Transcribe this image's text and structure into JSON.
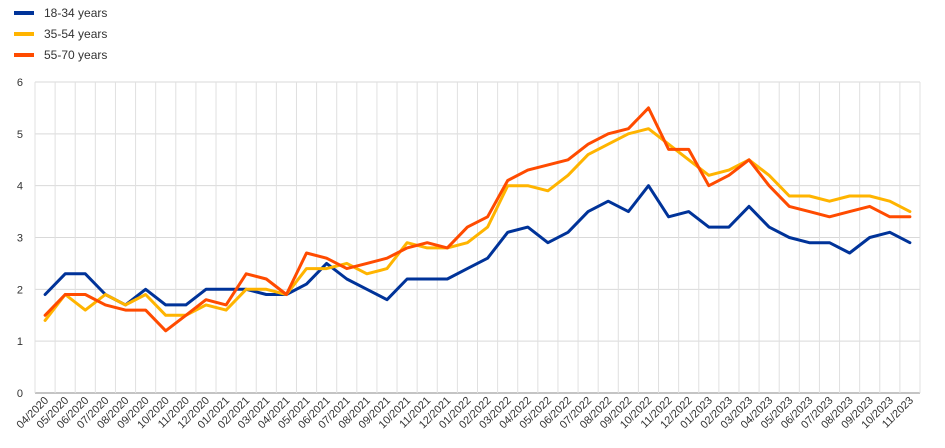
{
  "chart_data": {
    "type": "line",
    "title": "",
    "xlabel": "",
    "ylabel": "",
    "ylim": [
      0,
      6
    ],
    "yticks": [
      0,
      1,
      2,
      3,
      4,
      5,
      6
    ],
    "grid": true,
    "legend_position": "top-left",
    "categories": [
      "04/2020",
      "05/2020",
      "06/2020",
      "07/2020",
      "08/2020",
      "09/2020",
      "10/2020",
      "11/2020",
      "12/2020",
      "01/2021",
      "02/2021",
      "03/2021",
      "04/2021",
      "05/2021",
      "06/2021",
      "07/2021",
      "08/2021",
      "09/2021",
      "10/2021",
      "11/2021",
      "12/2021",
      "01/2022",
      "02/2022",
      "03/2022",
      "04/2022",
      "05/2022",
      "06/2022",
      "07/2022",
      "08/2022",
      "09/2022",
      "10/2022",
      "11/2022",
      "12/2022",
      "01/2023",
      "02/2023",
      "03/2023",
      "04/2023",
      "05/2023",
      "06/2023",
      "07/2023",
      "08/2023",
      "09/2023",
      "10/2023",
      "11/2023"
    ],
    "series": [
      {
        "name": "18-34 years",
        "color": "#003399",
        "values": [
          1.9,
          2.3,
          2.3,
          1.9,
          1.7,
          2.0,
          1.7,
          1.7,
          2.0,
          2.0,
          2.0,
          1.9,
          1.9,
          2.1,
          2.5,
          2.2,
          2.0,
          1.8,
          2.2,
          2.2,
          2.2,
          2.4,
          2.6,
          3.1,
          3.2,
          2.9,
          3.1,
          3.5,
          3.7,
          3.5,
          4.0,
          3.4,
          3.5,
          3.2,
          3.2,
          3.6,
          3.2,
          3.0,
          2.9,
          2.9,
          2.7,
          3.0,
          3.1,
          2.9
        ]
      },
      {
        "name": "35-54 years",
        "color": "#FFB400",
        "values": [
          1.4,
          1.9,
          1.6,
          1.9,
          1.7,
          1.9,
          1.5,
          1.5,
          1.7,
          1.6,
          2.0,
          2.0,
          1.9,
          2.4,
          2.4,
          2.5,
          2.3,
          2.4,
          2.9,
          2.8,
          2.8,
          2.9,
          3.2,
          4.0,
          4.0,
          3.9,
          4.2,
          4.6,
          4.8,
          5.0,
          5.1,
          4.8,
          4.5,
          4.2,
          4.3,
          4.5,
          4.2,
          3.8,
          3.8,
          3.7,
          3.8,
          3.8,
          3.7,
          3.5
        ]
      },
      {
        "name": "55-70 years",
        "color": "#FF4B00",
        "values": [
          1.5,
          1.9,
          1.9,
          1.7,
          1.6,
          1.6,
          1.2,
          1.5,
          1.8,
          1.7,
          2.3,
          2.2,
          1.9,
          2.7,
          2.6,
          2.4,
          2.5,
          2.6,
          2.8,
          2.9,
          2.8,
          3.2,
          3.4,
          4.1,
          4.3,
          4.4,
          4.5,
          4.8,
          5.0,
          5.1,
          5.5,
          4.7,
          4.7,
          4.0,
          4.2,
          4.5,
          4.0,
          3.6,
          3.5,
          3.4,
          3.5,
          3.6,
          3.4,
          3.4
        ]
      }
    ]
  }
}
